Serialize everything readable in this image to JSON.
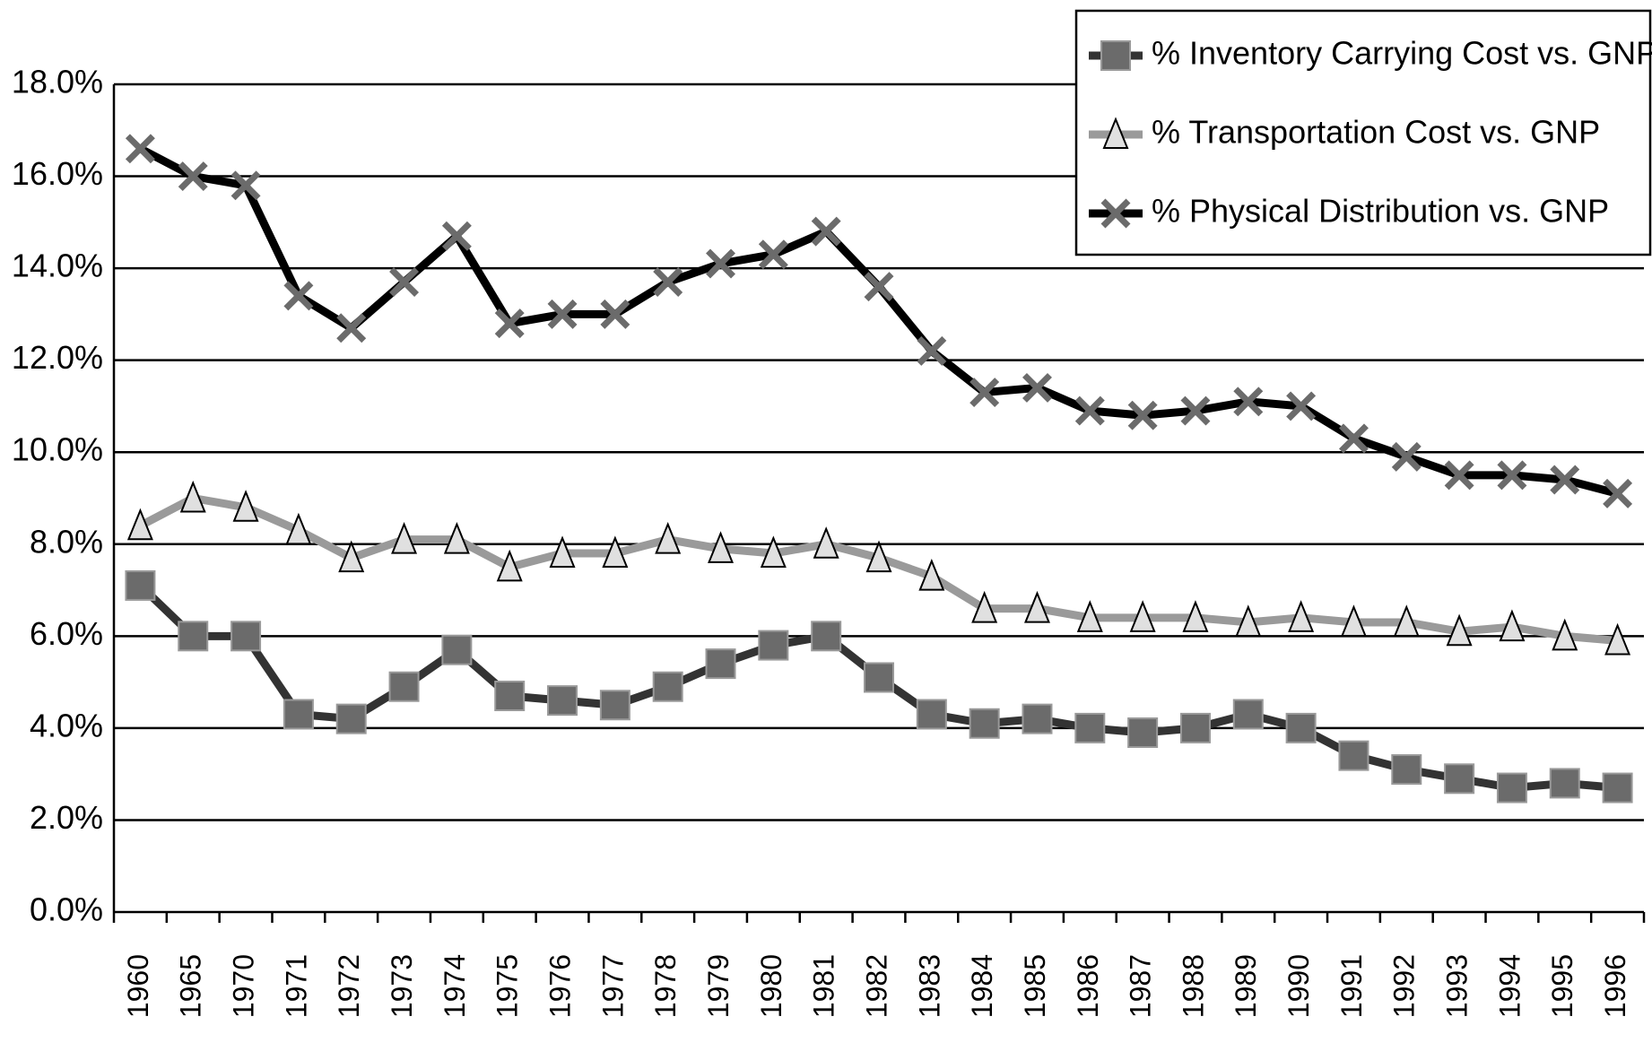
{
  "chart_data": {
    "type": "line",
    "categories": [
      "1960",
      "1965",
      "1970",
      "1971",
      "1972",
      "1973",
      "1974",
      "1975",
      "1976",
      "1977",
      "1978",
      "1979",
      "1980",
      "1981",
      "1982",
      "1983",
      "1984",
      "1985",
      "1986",
      "1987",
      "1988",
      "1989",
      "1990",
      "1991",
      "1992",
      "1993",
      "1994",
      "1995",
      "1996"
    ],
    "series": [
      {
        "name": "% Inventory Carrying Cost vs. GNP",
        "color": "#333333",
        "marker": "square",
        "marker_color": "#6b6b6b",
        "values": [
          7.1,
          6.0,
          6.0,
          4.3,
          4.2,
          4.9,
          5.7,
          4.7,
          4.6,
          4.5,
          4.9,
          5.4,
          5.8,
          6.0,
          5.1,
          4.3,
          4.1,
          4.2,
          4.0,
          3.9,
          4.0,
          4.3,
          4.0,
          3.4,
          3.1,
          2.9,
          2.7,
          2.8,
          2.7
        ]
      },
      {
        "name": "% Transportation Cost vs. GNP",
        "color": "#9a9a9a",
        "marker": "triangle",
        "marker_color": "#e0e0e0",
        "values": [
          8.4,
          9.0,
          8.8,
          8.3,
          7.7,
          8.1,
          8.1,
          7.5,
          7.8,
          7.8,
          8.1,
          7.9,
          7.8,
          8.0,
          7.7,
          7.3,
          6.6,
          6.6,
          6.4,
          6.4,
          6.4,
          6.3,
          6.4,
          6.3,
          6.3,
          6.1,
          6.2,
          6.0,
          5.9
        ]
      },
      {
        "name": "% Physical Distribution vs. GNP",
        "color": "#000000",
        "marker": "x",
        "marker_color": "#6b6b6b",
        "values": [
          16.6,
          16.0,
          15.8,
          13.4,
          12.7,
          13.7,
          14.7,
          12.8,
          13.0,
          13.0,
          13.7,
          14.1,
          14.3,
          14.8,
          13.6,
          12.2,
          11.3,
          11.4,
          10.9,
          10.8,
          10.9,
          11.1,
          11.0,
          10.3,
          9.9,
          9.5,
          9.5,
          9.4,
          9.1
        ]
      }
    ],
    "ylim": [
      0,
      18
    ],
    "yticks": [
      {
        "value": 0,
        "label": "0.0%"
      },
      {
        "value": 2,
        "label": "2.0%"
      },
      {
        "value": 4,
        "label": "4.0%"
      },
      {
        "value": 6,
        "label": "6.0%"
      },
      {
        "value": 8,
        "label": "8.0%"
      },
      {
        "value": 10,
        "label": "10.0%"
      },
      {
        "value": 12,
        "label": "12.0%"
      },
      {
        "value": 14,
        "label": "14.0%"
      },
      {
        "value": 16,
        "label": "16.0%"
      },
      {
        "value": 18,
        "label": "18.0%"
      }
    ],
    "grid": true,
    "legend": "top-right"
  }
}
